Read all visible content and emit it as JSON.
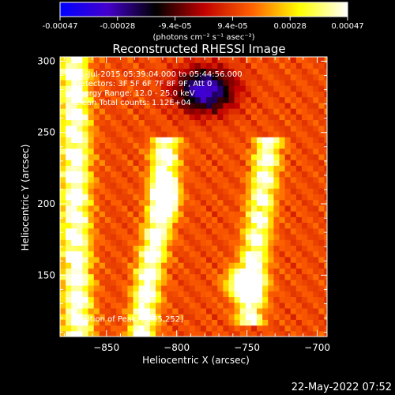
{
  "chart_data": {
    "type": "heatmap",
    "title": "Reconstructed RHESSI Image",
    "xlabel": "Heliocentric X (arcsec)",
    "ylabel": "Heliocentric Y (arcsec)",
    "xlim": [
      -883,
      -693
    ],
    "ylim": [
      107,
      303
    ],
    "xticks": [
      -850,
      -800,
      -750,
      -700
    ],
    "yticks": [
      150,
      200,
      250,
      300
    ],
    "colorbar": {
      "units_label": "(photons cm⁻² s⁻¹ asec⁻²)",
      "ticks": [
        "-0.00047",
        "-0.00028",
        "-9.4e-05",
        "9.4e-05",
        "0.00028",
        "0.00047"
      ],
      "range": [
        -0.00047,
        0.00047
      ],
      "colors": [
        "#0000ff",
        "#4400cc",
        "#000000",
        "#c00000",
        "#ff6000",
        "#ffff00",
        "#ffffff"
      ]
    },
    "annotations": [
      "1-Jul-2015 05:39:04.000 to 05:44:56.000",
      "Detectors: 3F 5F 6F 7F 8F 9F, Att 0",
      "Energy Range: 12.0 - 25.0 keV",
      "Clean    Total counts: 1.12E+04"
    ],
    "peak_label": "Position of Peak: [-885,252]",
    "timestamp": "22-May-2022 07:52",
    "emission_features": [
      {
        "kind": "strip",
        "y_range": [
          107,
          303
        ],
        "x_path": [
          [
            107,
            -870
          ],
          [
            180,
            -872
          ],
          [
            250,
            -872
          ],
          [
            303,
            -873
          ]
        ],
        "width": 12,
        "peak": 0.00047
      },
      {
        "kind": "strip",
        "y_range": [
          107,
          240
        ],
        "x_path": [
          [
            107,
            -825
          ],
          [
            150,
            -820
          ],
          [
            200,
            -810
          ],
          [
            240,
            -808
          ]
        ],
        "width": 11,
        "peak": 0.00047
      },
      {
        "kind": "strip",
        "y_range": [
          120,
          240
        ],
        "x_path": [
          [
            120,
            -748
          ],
          [
            160,
            -745
          ],
          [
            200,
            -740
          ],
          [
            240,
            -735
          ]
        ],
        "width": 11,
        "peak": 0.00042
      },
      {
        "kind": "blob",
        "x": -808,
        "y": 205,
        "sx": 8,
        "sy": 12,
        "peak": 0.00047
      },
      {
        "kind": "blob",
        "x": -752,
        "y": 145,
        "sx": 12,
        "sy": 10,
        "peak": 0.00045
      },
      {
        "kind": "blob",
        "x": -780,
        "y": 280,
        "sx": 20,
        "sy": 15,
        "peak": -0.00047
      }
    ]
  }
}
